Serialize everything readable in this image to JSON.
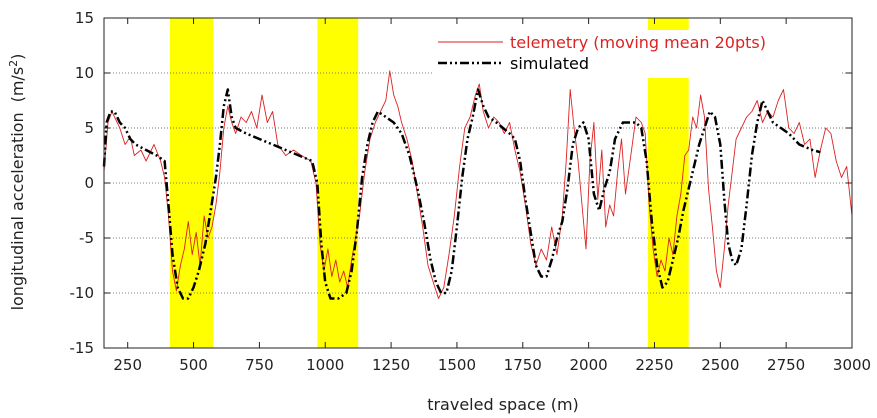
{
  "chart_data": {
    "type": "line",
    "title": "",
    "xlabel": "traveled space (m)",
    "ylabel": "longitudinal acceleration",
    "ylabel_unit_prefix": "(m/s",
    "ylabel_unit_exp": "2",
    "ylabel_unit_suffix": ")",
    "xlim": [
      160,
      3000
    ],
    "ylim": [
      -15,
      15
    ],
    "x_ticks": [
      250,
      500,
      750,
      1000,
      1250,
      1500,
      1750,
      2000,
      2250,
      2500,
      2750,
      3000
    ],
    "y_ticks": [
      -15,
      -10,
      -5,
      0,
      5,
      10,
      15
    ],
    "grid": "horizontal dotted",
    "legend_position": "top-right",
    "highlight_color": "#ffff00",
    "highlight_bands": [
      [
        410,
        575
      ],
      [
        970,
        1125
      ],
      [
        2225,
        2380
      ]
    ],
    "series": [
      {
        "name": "telemetry (moving mean 20pts)",
        "color": "#dd2222",
        "style": "solid",
        "points": [
          [
            160,
            1.0
          ],
          [
            175,
            5.5
          ],
          [
            190,
            6.5
          ],
          [
            220,
            5.0
          ],
          [
            240,
            3.5
          ],
          [
            260,
            4.2
          ],
          [
            275,
            2.5
          ],
          [
            300,
            3.0
          ],
          [
            320,
            2.0
          ],
          [
            350,
            3.5
          ],
          [
            375,
            2.0
          ],
          [
            390,
            0.5
          ],
          [
            405,
            -3.0
          ],
          [
            420,
            -8.0
          ],
          [
            435,
            -9.8
          ],
          [
            450,
            -7.5
          ],
          [
            465,
            -6.0
          ],
          [
            480,
            -3.5
          ],
          [
            495,
            -6.5
          ],
          [
            510,
            -4.5
          ],
          [
            525,
            -7.5
          ],
          [
            540,
            -3.0
          ],
          [
            555,
            -5.0
          ],
          [
            570,
            -4.0
          ],
          [
            585,
            -2.0
          ],
          [
            600,
            1.0
          ],
          [
            615,
            5.0
          ],
          [
            630,
            7.0
          ],
          [
            645,
            5.5
          ],
          [
            660,
            4.5
          ],
          [
            680,
            6.0
          ],
          [
            700,
            5.5
          ],
          [
            720,
            6.5
          ],
          [
            740,
            5.0
          ],
          [
            760,
            8.0
          ],
          [
            780,
            5.5
          ],
          [
            800,
            6.5
          ],
          [
            820,
            3.5
          ],
          [
            850,
            2.5
          ],
          [
            880,
            3.0
          ],
          [
            910,
            2.5
          ],
          [
            945,
            2.0
          ],
          [
            965,
            0.0
          ],
          [
            980,
            -5.5
          ],
          [
            995,
            -8.0
          ],
          [
            1010,
            -6.0
          ],
          [
            1025,
            -8.5
          ],
          [
            1040,
            -7.0
          ],
          [
            1055,
            -9.0
          ],
          [
            1070,
            -8.0
          ],
          [
            1085,
            -9.5
          ],
          [
            1100,
            -7.0
          ],
          [
            1115,
            -5.0
          ],
          [
            1130,
            -3.0
          ],
          [
            1150,
            1.0
          ],
          [
            1170,
            4.0
          ],
          [
            1190,
            5.5
          ],
          [
            1210,
            6.5
          ],
          [
            1230,
            7.5
          ],
          [
            1245,
            10.2
          ],
          [
            1260,
            8.0
          ],
          [
            1275,
            7.0
          ],
          [
            1290,
            5.5
          ],
          [
            1310,
            4.0
          ],
          [
            1330,
            2.0
          ],
          [
            1350,
            -1.0
          ],
          [
            1370,
            -4.0
          ],
          [
            1390,
            -7.5
          ],
          [
            1410,
            -9.0
          ],
          [
            1430,
            -10.5
          ],
          [
            1450,
            -9.5
          ],
          [
            1470,
            -6.5
          ],
          [
            1490,
            -3.0
          ],
          [
            1510,
            1.5
          ],
          [
            1530,
            5.0
          ],
          [
            1550,
            6.0
          ],
          [
            1570,
            8.0
          ],
          [
            1585,
            9.0
          ],
          [
            1600,
            6.5
          ],
          [
            1620,
            5.0
          ],
          [
            1640,
            6.0
          ],
          [
            1660,
            5.5
          ],
          [
            1680,
            4.5
          ],
          [
            1700,
            5.5
          ],
          [
            1720,
            3.0
          ],
          [
            1740,
            1.0
          ],
          [
            1760,
            -2.0
          ],
          [
            1780,
            -5.5
          ],
          [
            1800,
            -7.5
          ],
          [
            1820,
            -6.0
          ],
          [
            1840,
            -7.0
          ],
          [
            1860,
            -4.0
          ],
          [
            1880,
            -6.5
          ],
          [
            1900,
            -3.0
          ],
          [
            1915,
            2.0
          ],
          [
            1930,
            8.5
          ],
          [
            1945,
            5.0
          ],
          [
            1960,
            2.0
          ],
          [
            1975,
            -2.0
          ],
          [
            1990,
            -6.0
          ],
          [
            2005,
            2.0
          ],
          [
            2020,
            5.5
          ],
          [
            2035,
            -1.5
          ],
          [
            2050,
            3.0
          ],
          [
            2065,
            -4.0
          ],
          [
            2080,
            -2.0
          ],
          [
            2095,
            -3.0
          ],
          [
            2110,
            1.0
          ],
          [
            2125,
            4.0
          ],
          [
            2140,
            -1.0
          ],
          [
            2160,
            2.5
          ],
          [
            2180,
            6.0
          ],
          [
            2200,
            5.5
          ],
          [
            2215,
            4.5
          ],
          [
            2230,
            -2.0
          ],
          [
            2245,
            -6.0
          ],
          [
            2260,
            -8.5
          ],
          [
            2275,
            -7.0
          ],
          [
            2290,
            -8.0
          ],
          [
            2305,
            -5.0
          ],
          [
            2320,
            -6.5
          ],
          [
            2335,
            -3.0
          ],
          [
            2350,
            -1.0
          ],
          [
            2365,
            2.5
          ],
          [
            2380,
            3.0
          ],
          [
            2395,
            6.0
          ],
          [
            2410,
            5.0
          ],
          [
            2425,
            8.0
          ],
          [
            2440,
            6.0
          ],
          [
            2455,
            -0.5
          ],
          [
            2470,
            -4.0
          ],
          [
            2485,
            -8.0
          ],
          [
            2500,
            -9.5
          ],
          [
            2515,
            -6.0
          ],
          [
            2530,
            -2.0
          ],
          [
            2545,
            1.0
          ],
          [
            2560,
            4.0
          ],
          [
            2580,
            5.0
          ],
          [
            2600,
            6.0
          ],
          [
            2620,
            6.5
          ],
          [
            2640,
            7.5
          ],
          [
            2660,
            5.5
          ],
          [
            2680,
            6.5
          ],
          [
            2700,
            6.0
          ],
          [
            2720,
            7.5
          ],
          [
            2740,
            8.5
          ],
          [
            2760,
            5.0
          ],
          [
            2780,
            4.5
          ],
          [
            2800,
            5.5
          ],
          [
            2820,
            3.5
          ],
          [
            2840,
            4.0
          ],
          [
            2860,
            0.5
          ],
          [
            2880,
            3.0
          ],
          [
            2900,
            5.0
          ],
          [
            2920,
            4.5
          ],
          [
            2940,
            2.0
          ],
          [
            2960,
            0.5
          ],
          [
            2980,
            1.5
          ],
          [
            3000,
            -3.0
          ]
        ]
      },
      {
        "name": "simulated",
        "color": "#000000",
        "style": "dash-dot",
        "points": [
          [
            160,
            1.5
          ],
          [
            170,
            5.5
          ],
          [
            185,
            6.5
          ],
          [
            200,
            6.5
          ],
          [
            220,
            5.5
          ],
          [
            240,
            5.0
          ],
          [
            260,
            4.0
          ],
          [
            280,
            3.5
          ],
          [
            320,
            3.0
          ],
          [
            360,
            2.5
          ],
          [
            390,
            2.0
          ],
          [
            405,
            -2.0
          ],
          [
            420,
            -6.5
          ],
          [
            440,
            -9.5
          ],
          [
            460,
            -10.5
          ],
          [
            480,
            -10.5
          ],
          [
            500,
            -9.5
          ],
          [
            520,
            -8.0
          ],
          [
            545,
            -5.5
          ],
          [
            565,
            -2.5
          ],
          [
            585,
            0.5
          ],
          [
            600,
            3.5
          ],
          [
            615,
            7.0
          ],
          [
            630,
            8.5
          ],
          [
            645,
            6.0
          ],
          [
            660,
            5.0
          ],
          [
            700,
            4.5
          ],
          [
            750,
            4.0
          ],
          [
            800,
            3.5
          ],
          [
            850,
            3.0
          ],
          [
            900,
            2.5
          ],
          [
            950,
            2.0
          ],
          [
            970,
            0.0
          ],
          [
            985,
            -5.5
          ],
          [
            1000,
            -9.0
          ],
          [
            1020,
            -10.5
          ],
          [
            1050,
            -10.5
          ],
          [
            1080,
            -10.0
          ],
          [
            1100,
            -8.0
          ],
          [
            1120,
            -4.5
          ],
          [
            1140,
            0.5
          ],
          [
            1160,
            3.5
          ],
          [
            1180,
            5.5
          ],
          [
            1200,
            6.5
          ],
          [
            1230,
            6.0
          ],
          [
            1260,
            5.5
          ],
          [
            1290,
            4.5
          ],
          [
            1320,
            2.5
          ],
          [
            1350,
            -0.5
          ],
          [
            1375,
            -3.5
          ],
          [
            1400,
            -7.0
          ],
          [
            1420,
            -9.0
          ],
          [
            1440,
            -10.0
          ],
          [
            1460,
            -10.0
          ],
          [
            1480,
            -8.0
          ],
          [
            1500,
            -4.0
          ],
          [
            1520,
            0.5
          ],
          [
            1540,
            4.0
          ],
          [
            1560,
            6.0
          ],
          [
            1580,
            8.5
          ],
          [
            1600,
            7.0
          ],
          [
            1620,
            6.0
          ],
          [
            1650,
            5.5
          ],
          [
            1700,
            4.5
          ],
          [
            1720,
            4.0
          ],
          [
            1740,
            2.0
          ],
          [
            1760,
            -1.5
          ],
          [
            1780,
            -4.5
          ],
          [
            1800,
            -7.5
          ],
          [
            1820,
            -8.5
          ],
          [
            1840,
            -8.5
          ],
          [
            1860,
            -7.0
          ],
          [
            1880,
            -5.0
          ],
          [
            1900,
            -3.5
          ],
          [
            1920,
            -0.5
          ],
          [
            1940,
            3.5
          ],
          [
            1960,
            5.0
          ],
          [
            1980,
            5.5
          ],
          [
            2000,
            4.0
          ],
          [
            2020,
            -1.0
          ],
          [
            2040,
            -2.5
          ],
          [
            2060,
            -0.5
          ],
          [
            2080,
            1.0
          ],
          [
            2100,
            4.0
          ],
          [
            2130,
            5.5
          ],
          [
            2160,
            5.5
          ],
          [
            2180,
            5.5
          ],
          [
            2200,
            5.0
          ],
          [
            2220,
            2.0
          ],
          [
            2240,
            -3.5
          ],
          [
            2260,
            -7.5
          ],
          [
            2280,
            -9.5
          ],
          [
            2300,
            -9.0
          ],
          [
            2320,
            -7.0
          ],
          [
            2340,
            -5.0
          ],
          [
            2360,
            -2.5
          ],
          [
            2380,
            -0.5
          ],
          [
            2400,
            1.5
          ],
          [
            2420,
            3.5
          ],
          [
            2440,
            5.0
          ],
          [
            2460,
            6.5
          ],
          [
            2480,
            6.0
          ],
          [
            2500,
            3.5
          ],
          [
            2515,
            -1.5
          ],
          [
            2530,
            -5.5
          ],
          [
            2545,
            -7.0
          ],
          [
            2560,
            -7.5
          ],
          [
            2580,
            -6.0
          ],
          [
            2600,
            -2.0
          ],
          [
            2620,
            2.5
          ],
          [
            2640,
            5.5
          ],
          [
            2660,
            7.5
          ],
          [
            2680,
            6.5
          ],
          [
            2700,
            5.5
          ],
          [
            2730,
            5.0
          ],
          [
            2760,
            4.5
          ],
          [
            2800,
            3.5
          ],
          [
            2850,
            3.0
          ],
          [
            2880,
            2.8
          ]
        ]
      }
    ]
  }
}
